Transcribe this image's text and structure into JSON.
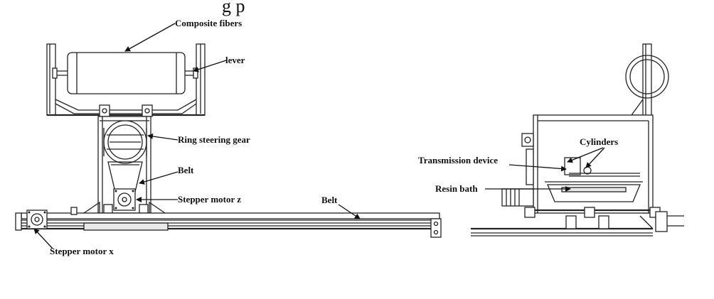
{
  "figure": {
    "cut_title": "g        p"
  },
  "labels": {
    "composite_fibers": "Composite fibers",
    "lever": "lever",
    "ring_steering_gear": "Ring steering gear",
    "belt_vertical": "Belt",
    "stepper_motor_z": "Stepper motor z",
    "belt_horizontal": "Belt",
    "stepper_motor_x": "Stepper motor x",
    "cylinders": "Cylinders",
    "transmission_device": "Transmission device",
    "resin_bath": "Resin bath"
  }
}
